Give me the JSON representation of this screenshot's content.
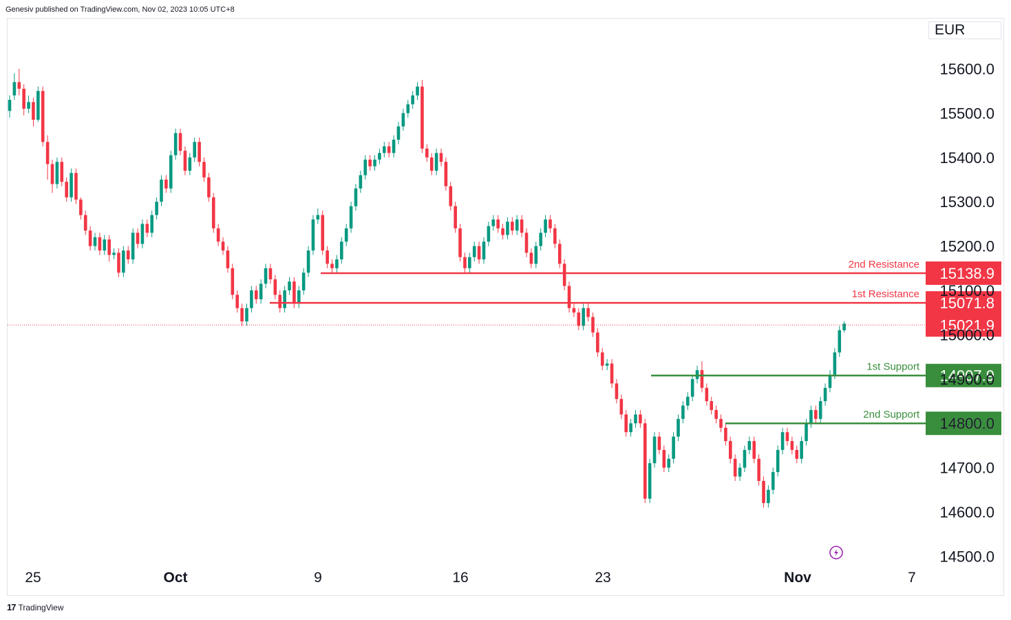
{
  "header": {
    "attribution": "Genesiv published on TradingView.com, Nov 02, 2023 10:05 UTC+8",
    "currency": "EUR"
  },
  "footer": {
    "brand": "TradingView",
    "brand_mark": "17"
  },
  "colors": {
    "up": "#089981",
    "down": "#f23645",
    "resistance": "#f23645",
    "support": "#388e3c"
  },
  "chart_data": {
    "type": "candlestick",
    "ylim": [
      14440,
      15700
    ],
    "y_ticks": [
      14500,
      14600,
      14700,
      14800,
      14900,
      15000,
      15100,
      15200,
      15300,
      15400,
      15500,
      15600
    ],
    "y_tick_labels": [
      "14500.0",
      "14600.0",
      "14700.0",
      "14800.0",
      "14900.0",
      "15000.0",
      "15100.0",
      "15200.0",
      "15300.0",
      "15400.0",
      "15500.0",
      "15600.0"
    ],
    "x_ticks": [
      {
        "label": "25",
        "bold": false
      },
      {
        "label": "Oct",
        "bold": true
      },
      {
        "label": "9",
        "bold": false
      },
      {
        "label": "16",
        "bold": false
      },
      {
        "label": "23",
        "bold": false
      },
      {
        "label": "Nov",
        "bold": true
      },
      {
        "label": "7",
        "bold": false
      }
    ],
    "levels": [
      {
        "name": "2nd Resistance",
        "value": "15138.9",
        "price": 15138.9,
        "kind": "resistance"
      },
      {
        "name": "1st Resistance",
        "value": "15071.8",
        "price": 15071.8,
        "kind": "resistance"
      },
      {
        "name": "1st Support",
        "value": "14907.9",
        "price": 14907.9,
        "kind": "support"
      },
      {
        "name": "2nd Support",
        "value": "14800.0",
        "price": 14800.0,
        "kind": "support"
      }
    ],
    "last_price": {
      "value": "15021.9",
      "price": 15021.9
    },
    "candles": [
      [
        15505,
        15530,
        15490,
        15540
      ],
      [
        15540,
        15570,
        15530,
        15590
      ],
      [
        15570,
        15555,
        15540,
        15600
      ],
      [
        15555,
        15510,
        15495,
        15565
      ],
      [
        15510,
        15525,
        15500,
        15540
      ],
      [
        15525,
        15485,
        15470,
        15535
      ],
      [
        15485,
        15550,
        15480,
        15560
      ],
      [
        15550,
        15435,
        15425,
        15560
      ],
      [
        15435,
        15385,
        15350,
        15450
      ],
      [
        15385,
        15340,
        15320,
        15395
      ],
      [
        15340,
        15390,
        15330,
        15400
      ],
      [
        15390,
        15345,
        15335,
        15400
      ],
      [
        15345,
        15310,
        15300,
        15355
      ],
      [
        15310,
        15365,
        15300,
        15375
      ],
      [
        15365,
        15305,
        15295,
        15375
      ],
      [
        15305,
        15270,
        15260,
        15310
      ],
      [
        15270,
        15235,
        15225,
        15280
      ],
      [
        15235,
        15200,
        15190,
        15245
      ],
      [
        15200,
        15220,
        15190,
        15230
      ],
      [
        15220,
        15190,
        15180,
        15230
      ],
      [
        15190,
        15215,
        15180,
        15225
      ],
      [
        15215,
        15180,
        15165,
        15225
      ],
      [
        15180,
        15185,
        15170,
        15195
      ],
      [
        15185,
        15140,
        15130,
        15195
      ],
      [
        15140,
        15190,
        15130,
        15200
      ],
      [
        15190,
        15170,
        15160,
        15200
      ],
      [
        15170,
        15230,
        15160,
        15240
      ],
      [
        15230,
        15205,
        15195,
        15240
      ],
      [
        15205,
        15250,
        15195,
        15260
      ],
      [
        15250,
        15230,
        15220,
        15260
      ],
      [
        15230,
        15270,
        15220,
        15280
      ],
      [
        15270,
        15300,
        15260,
        15310
      ],
      [
        15300,
        15350,
        15290,
        15360
      ],
      [
        15350,
        15330,
        15320,
        15360
      ],
      [
        15330,
        15405,
        15320,
        15415
      ],
      [
        15405,
        15455,
        15395,
        15465
      ],
      [
        15455,
        15415,
        15405,
        15465
      ],
      [
        15415,
        15370,
        15360,
        15425
      ],
      [
        15370,
        15400,
        15360,
        15410
      ],
      [
        15400,
        15435,
        15390,
        15445
      ],
      [
        15435,
        15390,
        15380,
        15445
      ],
      [
        15390,
        15355,
        15345,
        15400
      ],
      [
        15355,
        15310,
        15300,
        15365
      ],
      [
        15310,
        15240,
        15230,
        15320
      ],
      [
        15240,
        15210,
        15200,
        15250
      ],
      [
        15210,
        15190,
        15180,
        15220
      ],
      [
        15190,
        15150,
        15140,
        15200
      ],
      [
        15150,
        15090,
        15080,
        15160
      ],
      [
        15090,
        15060,
        15050,
        15100
      ],
      [
        15060,
        15030,
        15020,
        15070
      ],
      [
        15030,
        15060,
        15020,
        15070
      ],
      [
        15060,
        15100,
        15050,
        15110
      ],
      [
        15100,
        15080,
        15070,
        15110
      ],
      [
        15080,
        15115,
        15070,
        15125
      ],
      [
        15115,
        15150,
        15105,
        15160
      ],
      [
        15150,
        15125,
        15115,
        15160
      ],
      [
        15125,
        15090,
        15080,
        15135
      ],
      [
        15090,
        15060,
        15050,
        15100
      ],
      [
        15060,
        15100,
        15050,
        15110
      ],
      [
        15100,
        15120,
        15090,
        15130
      ],
      [
        15120,
        15070,
        15060,
        15130
      ],
      [
        15070,
        15100,
        15060,
        15110
      ],
      [
        15100,
        15140,
        15090,
        15150
      ],
      [
        15140,
        15190,
        15130,
        15200
      ],
      [
        15190,
        15260,
        15180,
        15270
      ],
      [
        15260,
        15270,
        15250,
        15285
      ],
      [
        15270,
        15190,
        15180,
        15280
      ],
      [
        15190,
        15160,
        15150,
        15200
      ],
      [
        15160,
        15150,
        15140,
        15170
      ],
      [
        15150,
        15170,
        15140,
        15180
      ],
      [
        15170,
        15210,
        15160,
        15220
      ],
      [
        15210,
        15240,
        15200,
        15250
      ],
      [
        15240,
        15290,
        15230,
        15300
      ],
      [
        15290,
        15330,
        15280,
        15340
      ],
      [
        15330,
        15360,
        15320,
        15370
      ],
      [
        15360,
        15395,
        15350,
        15405
      ],
      [
        15395,
        15380,
        15370,
        15405
      ],
      [
        15380,
        15395,
        15370,
        15405
      ],
      [
        15395,
        15410,
        15385,
        15420
      ],
      [
        15410,
        15425,
        15400,
        15435
      ],
      [
        15425,
        15410,
        15400,
        15435
      ],
      [
        15410,
        15440,
        15400,
        15450
      ],
      [
        15440,
        15470,
        15430,
        15480
      ],
      [
        15470,
        15500,
        15460,
        15510
      ],
      [
        15500,
        15520,
        15490,
        15530
      ],
      [
        15520,
        15540,
        15510,
        15550
      ],
      [
        15540,
        15560,
        15530,
        15570
      ],
      [
        15560,
        15420,
        15410,
        15575
      ],
      [
        15420,
        15400,
        15390,
        15430
      ],
      [
        15400,
        15370,
        15360,
        15410
      ],
      [
        15370,
        15410,
        15360,
        15420
      ],
      [
        15410,
        15390,
        15380,
        15420
      ],
      [
        15390,
        15335,
        15325,
        15400
      ],
      [
        15335,
        15290,
        15280,
        15345
      ],
      [
        15290,
        15240,
        15230,
        15300
      ],
      [
        15240,
        15175,
        15165,
        15250
      ],
      [
        15175,
        15150,
        15140,
        15185
      ],
      [
        15150,
        15175,
        15140,
        15185
      ],
      [
        15175,
        15200,
        15165,
        15210
      ],
      [
        15200,
        15170,
        15160,
        15210
      ],
      [
        15170,
        15210,
        15160,
        15220
      ],
      [
        15210,
        15245,
        15200,
        15255
      ],
      [
        15245,
        15260,
        15235,
        15270
      ],
      [
        15260,
        15240,
        15230,
        15270
      ],
      [
        15240,
        15225,
        15215,
        15250
      ],
      [
        15225,
        15255,
        15215,
        15265
      ],
      [
        15255,
        15235,
        15225,
        15265
      ],
      [
        15235,
        15260,
        15225,
        15270
      ],
      [
        15260,
        15230,
        15220,
        15270
      ],
      [
        15230,
        15185,
        15175,
        15240
      ],
      [
        15185,
        15160,
        15150,
        15195
      ],
      [
        15160,
        15200,
        15150,
        15210
      ],
      [
        15200,
        15230,
        15190,
        15240
      ],
      [
        15230,
        15260,
        15220,
        15270
      ],
      [
        15260,
        15240,
        15230,
        15270
      ],
      [
        15240,
        15205,
        15195,
        15250
      ],
      [
        15205,
        15160,
        15150,
        15215
      ],
      [
        15160,
        15110,
        15100,
        15170
      ],
      [
        15110,
        15060,
        15050,
        15120
      ],
      [
        15060,
        15050,
        15040,
        15070
      ],
      [
        15050,
        15020,
        15010,
        15060
      ],
      [
        15020,
        15060,
        15010,
        15070
      ],
      [
        15060,
        15040,
        15030,
        15070
      ],
      [
        15040,
        15005,
        14995,
        15050
      ],
      [
        15005,
        14960,
        14950,
        15015
      ],
      [
        14960,
        14930,
        14920,
        14970
      ],
      [
        14930,
        14935,
        14920,
        14945
      ],
      [
        14935,
        14890,
        14880,
        14945
      ],
      [
        14890,
        14855,
        14845,
        14900
      ],
      [
        14855,
        14820,
        14810,
        14865
      ],
      [
        14820,
        14780,
        14770,
        14830
      ],
      [
        14780,
        14800,
        14770,
        14810
      ],
      [
        14800,
        14820,
        14790,
        14830
      ],
      [
        14820,
        14800,
        14790,
        14830
      ],
      [
        14800,
        14630,
        14620,
        14810
      ],
      [
        14630,
        14710,
        14620,
        14720
      ],
      [
        14710,
        14770,
        14700,
        14780
      ],
      [
        14770,
        14740,
        14730,
        14780
      ],
      [
        14740,
        14700,
        14690,
        14750
      ],
      [
        14700,
        14720,
        14690,
        14730
      ],
      [
        14720,
        14770,
        14710,
        14780
      ],
      [
        14770,
        14810,
        14760,
        14820
      ],
      [
        14810,
        14840,
        14800,
        14850
      ],
      [
        14840,
        14860,
        14830,
        14870
      ],
      [
        14860,
        14900,
        14850,
        14910
      ],
      [
        14900,
        14920,
        14890,
        14930
      ],
      [
        14920,
        14880,
        14870,
        14940
      ],
      [
        14880,
        14850,
        14840,
        14890
      ],
      [
        14850,
        14830,
        14820,
        14860
      ],
      [
        14830,
        14810,
        14800,
        14840
      ],
      [
        14810,
        14790,
        14780,
        14820
      ],
      [
        14790,
        14760,
        14750,
        14800
      ],
      [
        14760,
        14720,
        14710,
        14770
      ],
      [
        14720,
        14680,
        14670,
        14730
      ],
      [
        14680,
        14700,
        14670,
        14710
      ],
      [
        14700,
        14740,
        14690,
        14750
      ],
      [
        14740,
        14760,
        14730,
        14770
      ],
      [
        14760,
        14720,
        14710,
        14770
      ],
      [
        14720,
        14670,
        14660,
        14730
      ],
      [
        14670,
        14620,
        14610,
        14680
      ],
      [
        14620,
        14650,
        14610,
        14660
      ],
      [
        14650,
        14690,
        14640,
        14700
      ],
      [
        14690,
        14740,
        14680,
        14750
      ],
      [
        14740,
        14780,
        14730,
        14790
      ],
      [
        14780,
        14760,
        14750,
        14790
      ],
      [
        14760,
        14740,
        14730,
        14770
      ],
      [
        14740,
        14720,
        14710,
        14750
      ],
      [
        14720,
        14760,
        14710,
        14770
      ],
      [
        14760,
        14800,
        14750,
        14810
      ],
      [
        14800,
        14830,
        14790,
        14840
      ],
      [
        14830,
        14810,
        14800,
        14840
      ],
      [
        14810,
        14850,
        14800,
        14860
      ],
      [
        14850,
        14880,
        14840,
        14890
      ],
      [
        14880,
        14910,
        14870,
        14920
      ],
      [
        14910,
        14960,
        14900,
        14970
      ],
      [
        14960,
        15010,
        14950,
        15020
      ],
      [
        15010,
        15025,
        15005,
        15030
      ]
    ]
  }
}
